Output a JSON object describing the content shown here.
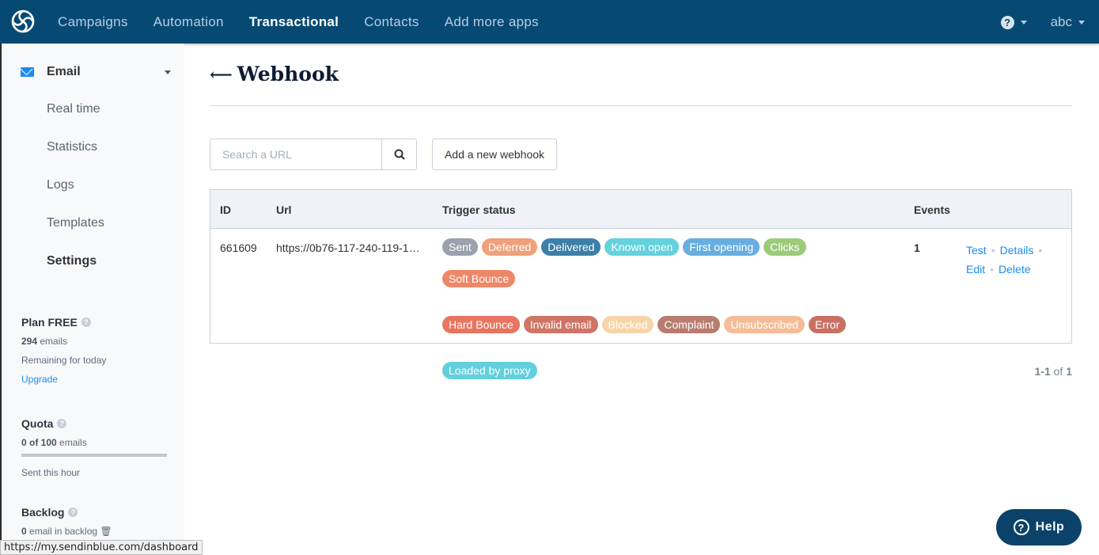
{
  "nav": {
    "items": [
      {
        "label": "Campaigns"
      },
      {
        "label": "Automation"
      },
      {
        "label": "Transactional",
        "active": true
      },
      {
        "label": "Contacts"
      },
      {
        "label": "Add more apps"
      }
    ],
    "user": "abc",
    "help_icon": "question-circle-icon"
  },
  "sidebar": {
    "section": "Email",
    "items": [
      {
        "label": "Real time"
      },
      {
        "label": "Statistics"
      },
      {
        "label": "Logs"
      },
      {
        "label": "Templates"
      },
      {
        "label": "Settings",
        "active": true
      }
    ],
    "plan": {
      "title": "Plan FREE",
      "count": "294",
      "count_suffix": " emails",
      "sub": "Remaining for today",
      "link": "Upgrade"
    },
    "quota": {
      "title": "Quota",
      "count": "0 of 100",
      "count_suffix": " emails",
      "progress_percent": 0,
      "sub": "Sent this hour"
    },
    "backlog": {
      "title": "Backlog",
      "count": "0",
      "count_suffix": " email in backlog"
    }
  },
  "page": {
    "title": "Webhook",
    "search_placeholder": "Search a URL",
    "add_button": "Add a new webhook"
  },
  "table": {
    "headers": {
      "id": "ID",
      "url": "Url",
      "trigger": "Trigger status",
      "events": "Events"
    },
    "rows": [
      {
        "id": "661609",
        "url": "https://0b76-117-240-119-1…",
        "events": "1",
        "tags": [
          {
            "label": "Sent",
            "color": "#9aa1ac"
          },
          {
            "label": "Deferred",
            "color": "#f0a07a"
          },
          {
            "label": "Delivered",
            "color": "#3c7fa8"
          },
          {
            "label": "Known open",
            "color": "#64d1dc"
          },
          {
            "label": "First opening",
            "color": "#68ade0"
          },
          {
            "label": "Clicks",
            "color": "#9ccb7b"
          },
          {
            "label": "Soft Bounce",
            "color": "#ee8767"
          },
          {
            "label": "Hard Bounce",
            "color": "#e87560"
          },
          {
            "label": "Invalid email",
            "color": "#cf7566"
          },
          {
            "label": "Blocked",
            "color": "#f8d5a8"
          },
          {
            "label": "Complaint",
            "color": "#b87d70"
          },
          {
            "label": "Unsubscribed",
            "color": "#f4bd98"
          },
          {
            "label": "Error",
            "color": "#c97064"
          },
          {
            "label": "Loaded by proxy",
            "color": "#62d0dc"
          }
        ],
        "actions": {
          "test": "Test",
          "details": "Details",
          "edit": "Edit",
          "delete": "Delete"
        }
      }
    ]
  },
  "pager": {
    "range": "1-1",
    "of": " of ",
    "total": "1"
  },
  "help_button": "Help",
  "status_bar": "https://my.sendinblue.com/dashboard",
  "colors": {
    "nav": "#064a74",
    "link": "#1a8cf0",
    "help": "#0b4269"
  }
}
